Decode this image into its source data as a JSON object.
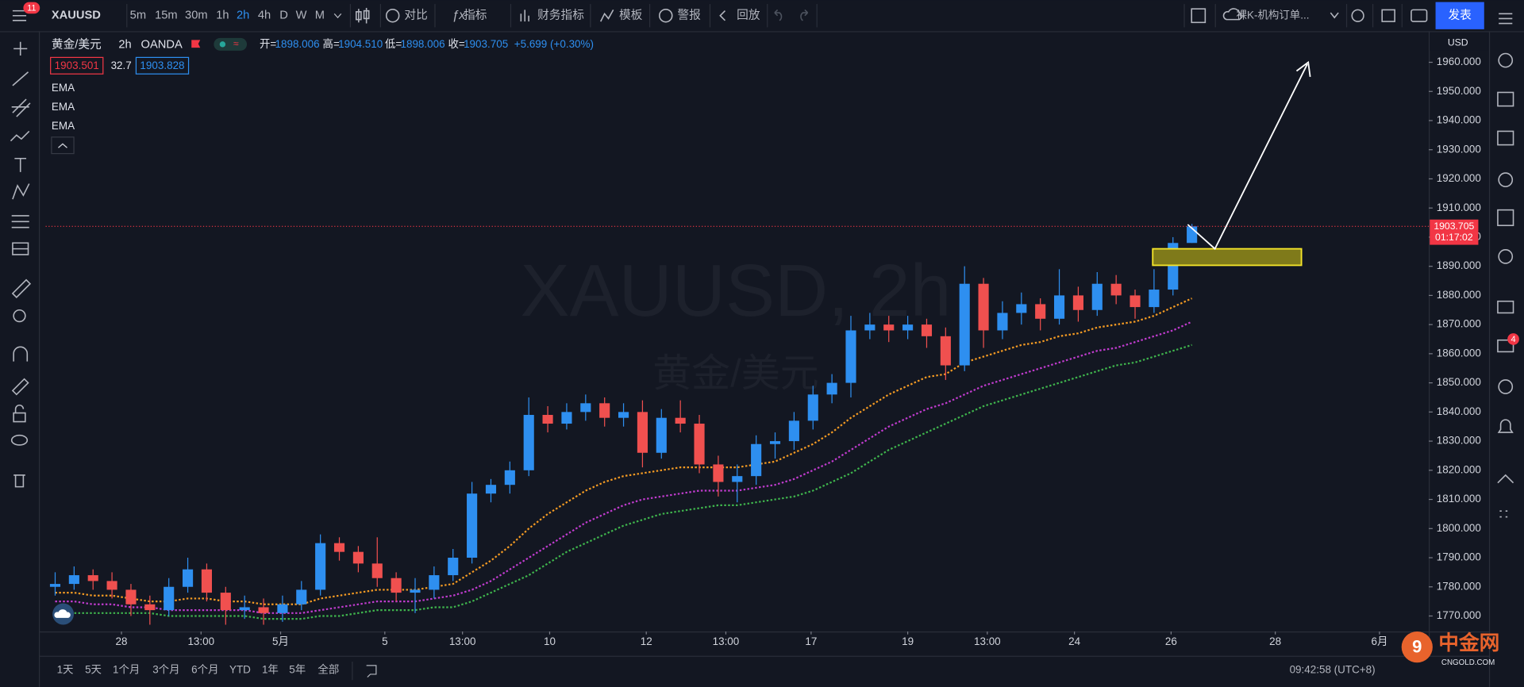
{
  "toolbar": {
    "badge": "11",
    "symbol": "XAUUSD",
    "intervals": [
      "5m",
      "15m",
      "30m",
      "1h",
      "2h",
      "4h",
      "D",
      "W",
      "M"
    ],
    "active_interval": 4,
    "buttons": [
      "对比",
      "指标",
      "财务指标",
      "模板",
      "警报",
      "回放"
    ],
    "layout_name": "裸K-机构订单...",
    "publish": "发表"
  },
  "legend": {
    "title": "黄金/美元",
    "interval": "2h",
    "exchange": "OANDA",
    "ohlc": [
      {
        "label": "开=",
        "value": "1898.006"
      },
      {
        "label": "高=",
        "value": "1904.510"
      },
      {
        "label": "低=",
        "value": "1898.006"
      },
      {
        "label": "收=",
        "value": "1903.705"
      }
    ],
    "change": "+5.699 (+0.30%)",
    "bid": "1903.501",
    "spread": "32.7",
    "ask": "1903.828"
  },
  "chart_data": {
    "type": "candlestick",
    "watermark": "XAUUSD, 2h",
    "watermark_sub": "黄金/美元",
    "currency": "USD",
    "up_color": "#2e8ff0",
    "down_color": "#f0504f",
    "candles": [
      [
        1780,
        1785,
        1777,
        1781
      ],
      [
        1781,
        1787,
        1779,
        1784
      ],
      [
        1784,
        1786,
        1779,
        1782
      ],
      [
        1782,
        1785,
        1776,
        1779
      ],
      [
        1779,
        1781,
        1770,
        1774
      ],
      [
        1774,
        1777,
        1767,
        1772
      ],
      [
        1772,
        1783,
        1770,
        1780
      ],
      [
        1780,
        1790,
        1778,
        1786
      ],
      [
        1786,
        1788,
        1775,
        1778
      ],
      [
        1778,
        1780,
        1767,
        1772
      ],
      [
        1772,
        1777,
        1769,
        1773
      ],
      [
        1773,
        1776,
        1767,
        1771
      ],
      [
        1771,
        1777,
        1768,
        1774
      ],
      [
        1774,
        1782,
        1772,
        1779
      ],
      [
        1779,
        1798,
        1777,
        1795
      ],
      [
        1795,
        1797,
        1789,
        1792
      ],
      [
        1792,
        1794,
        1785,
        1788
      ],
      [
        1788,
        1797,
        1780,
        1783
      ],
      [
        1783,
        1785,
        1775,
        1778
      ],
      [
        1778,
        1783,
        1771,
        1779
      ],
      [
        1779,
        1787,
        1776,
        1784
      ],
      [
        1784,
        1793,
        1782,
        1790
      ],
      [
        1790,
        1816,
        1788,
        1812
      ],
      [
        1812,
        1817,
        1809,
        1815
      ],
      [
        1815,
        1823,
        1812,
        1820
      ],
      [
        1820,
        1845,
        1818,
        1839
      ],
      [
        1839,
        1842,
        1833,
        1836
      ],
      [
        1836,
        1843,
        1834,
        1840
      ],
      [
        1840,
        1846,
        1837,
        1843
      ],
      [
        1843,
        1845,
        1835,
        1838
      ],
      [
        1838,
        1843,
        1835,
        1840
      ],
      [
        1840,
        1844,
        1821,
        1826
      ],
      [
        1826,
        1841,
        1824,
        1838
      ],
      [
        1838,
        1844,
        1833,
        1836
      ],
      [
        1836,
        1839,
        1819,
        1822
      ],
      [
        1822,
        1825,
        1811,
        1816
      ],
      [
        1816,
        1822,
        1809,
        1818
      ],
      [
        1818,
        1832,
        1815,
        1829
      ],
      [
        1829,
        1833,
        1824,
        1830
      ],
      [
        1830,
        1840,
        1827,
        1837
      ],
      [
        1837,
        1849,
        1834,
        1846
      ],
      [
        1846,
        1853,
        1843,
        1850
      ],
      [
        1850,
        1873,
        1845,
        1868
      ],
      [
        1868,
        1874,
        1865,
        1870
      ],
      [
        1870,
        1873,
        1864,
        1868
      ],
      [
        1868,
        1873,
        1865,
        1870
      ],
      [
        1870,
        1872,
        1862,
        1866
      ],
      [
        1866,
        1869,
        1851,
        1856
      ],
      [
        1856,
        1890,
        1854,
        1884
      ],
      [
        1884,
        1886,
        1862,
        1868
      ],
      [
        1868,
        1878,
        1865,
        1874
      ],
      [
        1874,
        1881,
        1870,
        1877
      ],
      [
        1877,
        1879,
        1868,
        1872
      ],
      [
        1872,
        1889,
        1870,
        1880
      ],
      [
        1880,
        1883,
        1871,
        1875
      ],
      [
        1875,
        1888,
        1873,
        1884
      ],
      [
        1884,
        1887,
        1877,
        1880
      ],
      [
        1880,
        1882,
        1872,
        1876
      ],
      [
        1876,
        1889,
        1874,
        1882
      ],
      [
        1882,
        1900,
        1880,
        1898.006
      ],
      [
        1898.006,
        1904.51,
        1898.006,
        1903.705
      ]
    ],
    "series": [
      {
        "name": "EMA",
        "color": "#f59b23",
        "values": [
          1778,
          1778,
          1777,
          1777,
          1776,
          1775,
          1775,
          1776,
          1776,
          1775,
          1775,
          1774,
          1774,
          1774,
          1776,
          1777,
          1778,
          1779,
          1779,
          1779,
          1780,
          1781,
          1785,
          1789,
          1794,
          1800,
          1805,
          1809,
          1813,
          1816,
          1818,
          1819,
          1820,
          1821,
          1821,
          1821,
          1821,
          1822,
          1823,
          1826,
          1829,
          1833,
          1838,
          1842,
          1846,
          1849,
          1852,
          1853,
          1857,
          1859,
          1861,
          1863,
          1864,
          1866,
          1867,
          1869,
          1870,
          1871,
          1873,
          1876,
          1879
        ]
      },
      {
        "name": "EMA",
        "color": "#c13ccf",
        "values": [
          1775,
          1775,
          1774,
          1774,
          1773,
          1773,
          1772,
          1772,
          1772,
          1772,
          1772,
          1771,
          1771,
          1771,
          1772,
          1773,
          1774,
          1775,
          1775,
          1775,
          1776,
          1777,
          1779,
          1782,
          1786,
          1790,
          1794,
          1798,
          1802,
          1805,
          1808,
          1810,
          1811,
          1812,
          1813,
          1813,
          1813,
          1814,
          1815,
          1817,
          1820,
          1823,
          1827,
          1831,
          1835,
          1838,
          1841,
          1843,
          1846,
          1849,
          1851,
          1853,
          1855,
          1857,
          1859,
          1861,
          1862,
          1864,
          1866,
          1868,
          1871
        ]
      },
      {
        "name": "EMA",
        "color": "#3fb54d",
        "values": [
          1770,
          1771,
          1771,
          1771,
          1771,
          1771,
          1770,
          1770,
          1770,
          1770,
          1770,
          1769,
          1769,
          1769,
          1770,
          1770,
          1771,
          1772,
          1772,
          1772,
          1773,
          1773,
          1775,
          1778,
          1781,
          1784,
          1788,
          1792,
          1795,
          1798,
          1801,
          1803,
          1805,
          1806,
          1807,
          1808,
          1808,
          1809,
          1810,
          1811,
          1813,
          1816,
          1819,
          1823,
          1827,
          1830,
          1833,
          1836,
          1839,
          1842,
          1844,
          1846,
          1848,
          1850,
          1852,
          1854,
          1856,
          1857,
          1859,
          1861,
          1863
        ]
      }
    ],
    "xlim": [
      -0.5,
      72.5
    ],
    "xticks": [
      {
        "value": 3.5,
        "label": "28"
      },
      {
        "value": 7.7,
        "label": "13:00"
      },
      {
        "value": 11.9,
        "label": "5月"
      },
      {
        "value": 17.4,
        "label": "5"
      },
      {
        "value": 21.5,
        "label": "13:00"
      },
      {
        "value": 26.1,
        "label": "10"
      },
      {
        "value": 31.2,
        "label": "12"
      },
      {
        "value": 35.4,
        "label": "13:00"
      },
      {
        "value": 39.9,
        "label": "17"
      },
      {
        "value": 45,
        "label": "19"
      },
      {
        "value": 49.2,
        "label": "13:00"
      },
      {
        "value": 53.8,
        "label": "24"
      },
      {
        "value": 58.9,
        "label": "26"
      },
      {
        "value": 64.4,
        "label": "28"
      },
      {
        "value": 69.9,
        "label": "6月"
      }
    ],
    "ylim": [
      1764.67,
      1970.67
    ],
    "yticks": [
      {
        "value": 1770,
        "label": "1770.000"
      },
      {
        "value": 1780,
        "label": "1780.000"
      },
      {
        "value": 1790,
        "label": "1790.000"
      },
      {
        "value": 1800,
        "label": "1800.000"
      },
      {
        "value": 1810,
        "label": "1810.000"
      },
      {
        "value": 1820,
        "label": "1820.000"
      },
      {
        "value": 1830,
        "label": "1830.000"
      },
      {
        "value": 1840,
        "label": "1840.000"
      },
      {
        "value": 1850,
        "label": "1850.000"
      },
      {
        "value": 1860,
        "label": "1860.000"
      },
      {
        "value": 1870,
        "label": "1870.000"
      },
      {
        "value": 1880,
        "label": "1880.000"
      },
      {
        "value": 1890,
        "label": "1890.000"
      },
      {
        "value": 1900,
        "label": "1900.000"
      },
      {
        "value": 1910,
        "label": "1910.000"
      },
      {
        "value": 1920,
        "label": "1920.000"
      },
      {
        "value": 1930,
        "label": "1930.000"
      },
      {
        "value": 1940,
        "label": "1940.000"
      },
      {
        "value": 1950,
        "label": "1950.000"
      },
      {
        "value": 1960,
        "label": "1960.000"
      }
    ],
    "grid": false,
    "last_price_label": "1903.705",
    "countdown": "01:17:02"
  },
  "sidebar": {
    "badge": "4"
  },
  "bottom_bar": {
    "ranges": [
      "1天",
      "5天",
      "1个月",
      "3个月",
      "6个月",
      "YTD",
      "1年",
      "5年",
      "全部"
    ],
    "clock": "09:42:58 (UTC+8)"
  },
  "logo": {
    "name": "中金网",
    "site": "CNGOLD.COM"
  }
}
